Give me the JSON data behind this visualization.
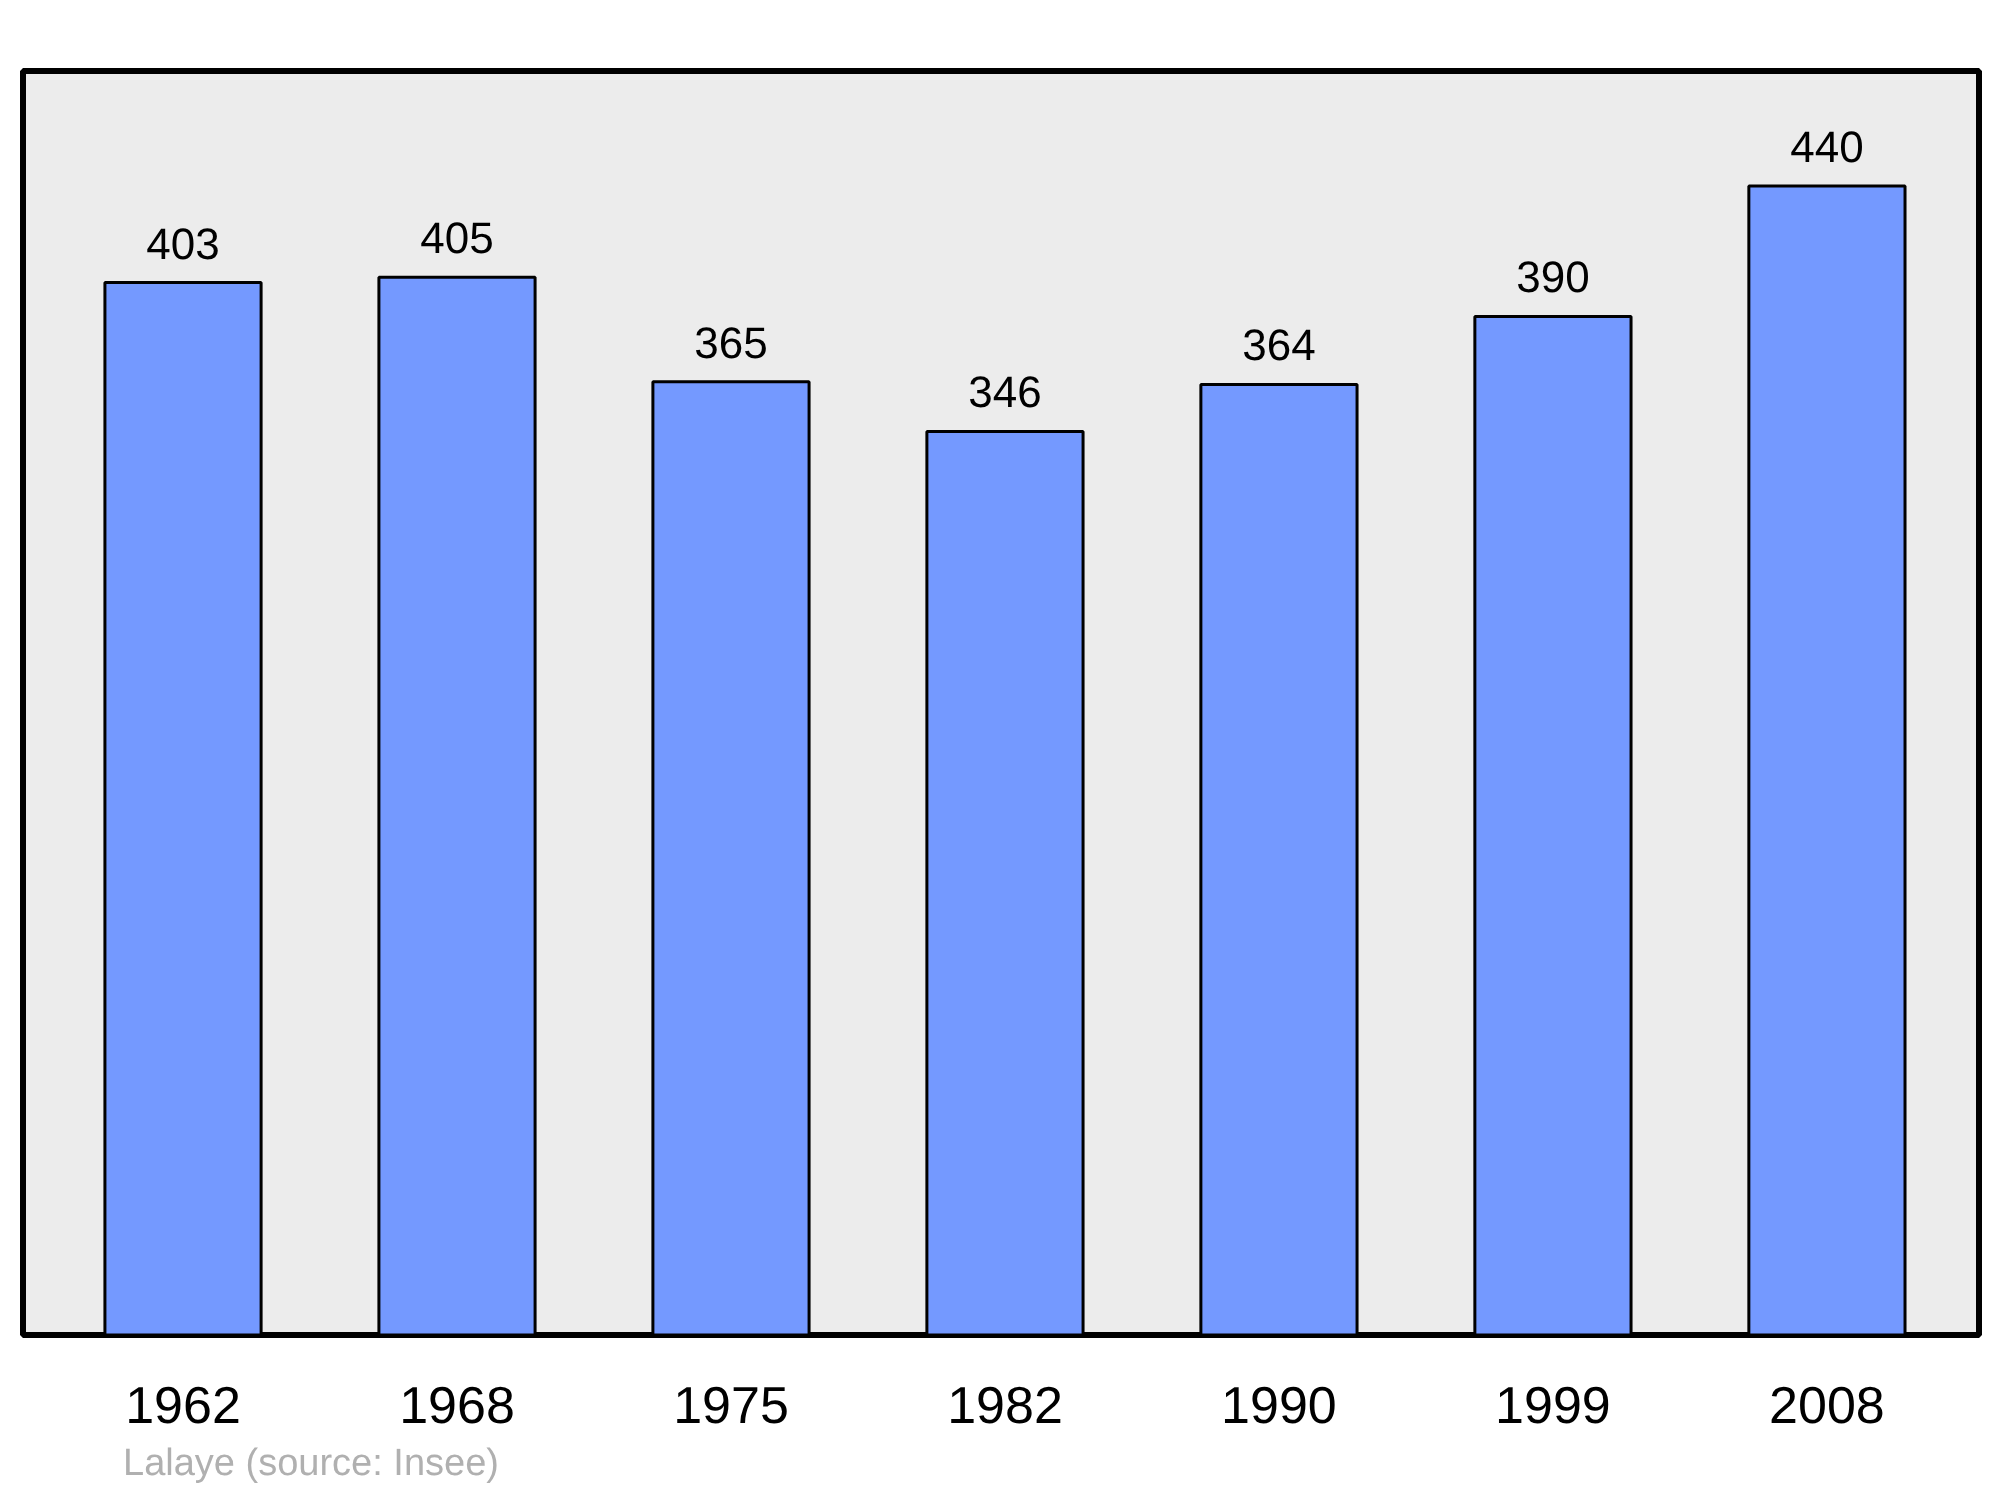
{
  "chart_data": {
    "type": "bar",
    "categories": [
      "1962",
      "1968",
      "1975",
      "1982",
      "1990",
      "1999",
      "2008"
    ],
    "values": [
      403,
      405,
      365,
      346,
      364,
      390,
      440
    ],
    "color": "#7499ff",
    "data_labels": true,
    "grid": false,
    "annotations": [
      "Lalaye",
      "(source: Insee)"
    ]
  }
}
